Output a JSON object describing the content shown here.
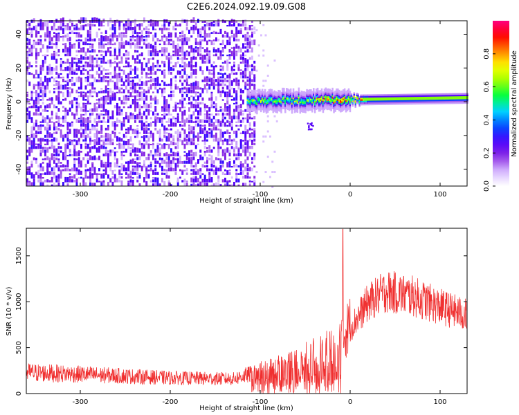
{
  "title": "C2E6.2024.092.19.09.G08",
  "chart_data": [
    {
      "type": "heatmap",
      "xlabel": "Height of straight line (km)",
      "ylabel": "Frequency (Hz)",
      "xlim": [
        -360,
        130
      ],
      "ylim": [
        -50,
        48
      ],
      "xticks": [
        -300,
        -200,
        -100,
        0,
        100
      ],
      "yticks": [
        -40,
        -20,
        0,
        20,
        40
      ],
      "colorbar": {
        "label": "Normalized spectral amplitude",
        "range": [
          0.0,
          1.0
        ],
        "ticks": [
          "0.0",
          "0.2",
          "0.4",
          "0.6",
          "0.8"
        ],
        "tick_values": [
          0.0,
          0.2,
          0.4,
          0.6,
          0.8
        ],
        "colors": [
          "#ffffff",
          "#d6b8ff",
          "#8a2be2",
          "#4b00ff",
          "#0050ff",
          "#00d8ff",
          "#00ff40",
          "#a0ff00",
          "#ffff00",
          "#ff8000",
          "#ff0000",
          "#ff0080"
        ]
      },
      "signal": {
        "noise_region_x": [
          -360,
          -105
        ],
        "line_region_x": [
          -115,
          130
        ],
        "line_frequency_start": 0,
        "line_frequency_end": 2
      }
    },
    {
      "type": "line",
      "xlabel": "Height of straight line (km)",
      "ylabel": "SNR (10 * v/v)",
      "xlim": [
        -360,
        130
      ],
      "ylim": [
        0,
        1800
      ],
      "xticks": [
        -300,
        -200,
        -100,
        0,
        100
      ],
      "yticks": [
        0,
        500,
        1000,
        1500
      ],
      "series": [
        {
          "color": "#f03030",
          "envelope": [
            {
              "x": -360,
              "y": 230
            },
            {
              "x": -300,
              "y": 210
            },
            {
              "x": -200,
              "y": 170
            },
            {
              "x": -130,
              "y": 160
            },
            {
              "x": -100,
              "y": 240
            },
            {
              "x": -70,
              "y": 320
            },
            {
              "x": -40,
              "y": 420
            },
            {
              "x": -15,
              "y": 520
            },
            {
              "x": 0,
              "y": 750
            },
            {
              "x": 20,
              "y": 1050
            },
            {
              "x": 40,
              "y": 1180
            },
            {
              "x": 70,
              "y": 1120
            },
            {
              "x": 100,
              "y": 1000
            },
            {
              "x": 130,
              "y": 900
            }
          ],
          "spike": {
            "x": -8,
            "y": 1790
          }
        }
      ]
    }
  ]
}
